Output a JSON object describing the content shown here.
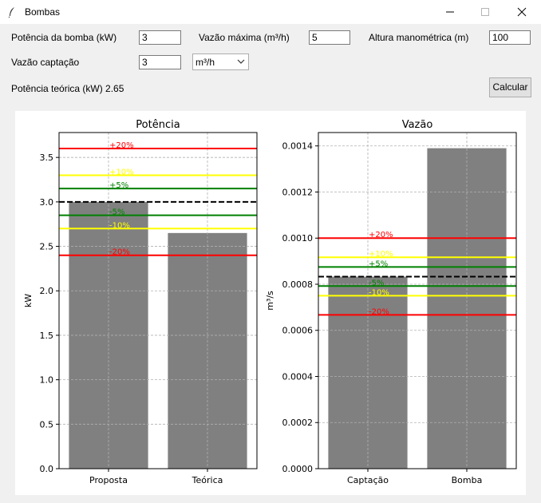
{
  "window": {
    "title": "Bombas"
  },
  "form": {
    "potencia_label": "Potência da bomba (kW)",
    "potencia_value": "3",
    "vazao_max_label": "Vazão máxima (m³/h)",
    "vazao_max_value": "5",
    "altura_label": "Altura manométrica (m)",
    "altura_value": "100",
    "vazao_captacao_label": "Vazão captação",
    "vazao_captacao_value": "3",
    "unit_selected": "m³/h",
    "potencia_teorica_text": "Potência teórica (kW) 2.65",
    "calcular_label": "Calcular"
  },
  "chart_data": [
    {
      "type": "bar",
      "title": "Potência",
      "xlabel": "",
      "ylabel": "kW",
      "categories": [
        "Proposta",
        "Teórica"
      ],
      "values": [
        3.0,
        2.65
      ],
      "bar_color": "#808080",
      "ylim": [
        0,
        3.78
      ],
      "yticks": [
        "0.0",
        "0.5",
        "1.0",
        "1.5",
        "2.0",
        "2.5",
        "3.0",
        "3.5"
      ],
      "grid": true,
      "reference": {
        "value": 3.0,
        "style": "dashed",
        "color": "#000000"
      },
      "bands": [
        {
          "label": "+20%",
          "value": 3.6,
          "color": "#ff0000"
        },
        {
          "label": "+10%",
          "value": 3.3,
          "color": "#ffff00"
        },
        {
          "label": "+5%",
          "value": 3.15,
          "color": "#008000"
        },
        {
          "label": "-5%",
          "value": 2.85,
          "color": "#008000"
        },
        {
          "label": "-10%",
          "value": 2.7,
          "color": "#ffff00"
        },
        {
          "label": "-20%",
          "value": 2.4,
          "color": "#ff0000"
        }
      ]
    },
    {
      "type": "bar",
      "title": "Vazão",
      "xlabel": "",
      "ylabel": "m³/s",
      "categories": [
        "Captação",
        "Bomba"
      ],
      "values": [
        0.000833,
        0.00139
      ],
      "bar_color": "#808080",
      "ylim": [
        0,
        0.001458
      ],
      "yticks": [
        "0.0000",
        "0.0002",
        "0.0004",
        "0.0006",
        "0.0008",
        "0.0010",
        "0.0012",
        "0.0014"
      ],
      "grid": true,
      "reference": {
        "value": 0.000833,
        "style": "dashed",
        "color": "#000000"
      },
      "bands": [
        {
          "label": "+20%",
          "value": 0.001,
          "color": "#ff0000"
        },
        {
          "label": "+10%",
          "value": 0.000917,
          "color": "#ffff00"
        },
        {
          "label": "+5%",
          "value": 0.000875,
          "color": "#008000"
        },
        {
          "label": "-5%",
          "value": 0.000792,
          "color": "#008000"
        },
        {
          "label": "-10%",
          "value": 0.00075,
          "color": "#ffff00"
        },
        {
          "label": "-20%",
          "value": 0.000667,
          "color": "#ff0000"
        }
      ]
    }
  ]
}
